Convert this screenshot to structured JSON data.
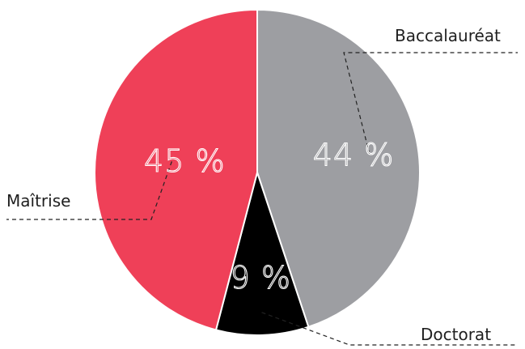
{
  "chart_data": {
    "type": "pie",
    "title": "",
    "slices": [
      {
        "label": "Baccalauréat",
        "value": 44,
        "value_label": "44 %",
        "color": "#9d9ea2"
      },
      {
        "label": "Doctorat",
        "value": 9,
        "value_label": "9 %",
        "color": "#000000"
      },
      {
        "label": "Maîtrise",
        "value": 45,
        "value_label": "45 %",
        "color": "#ef4058"
      }
    ],
    "start_angle_deg": 0,
    "direction": "clockwise",
    "value_label_style": "outlined",
    "category_labels": "outside-with-dashed-leaders"
  }
}
